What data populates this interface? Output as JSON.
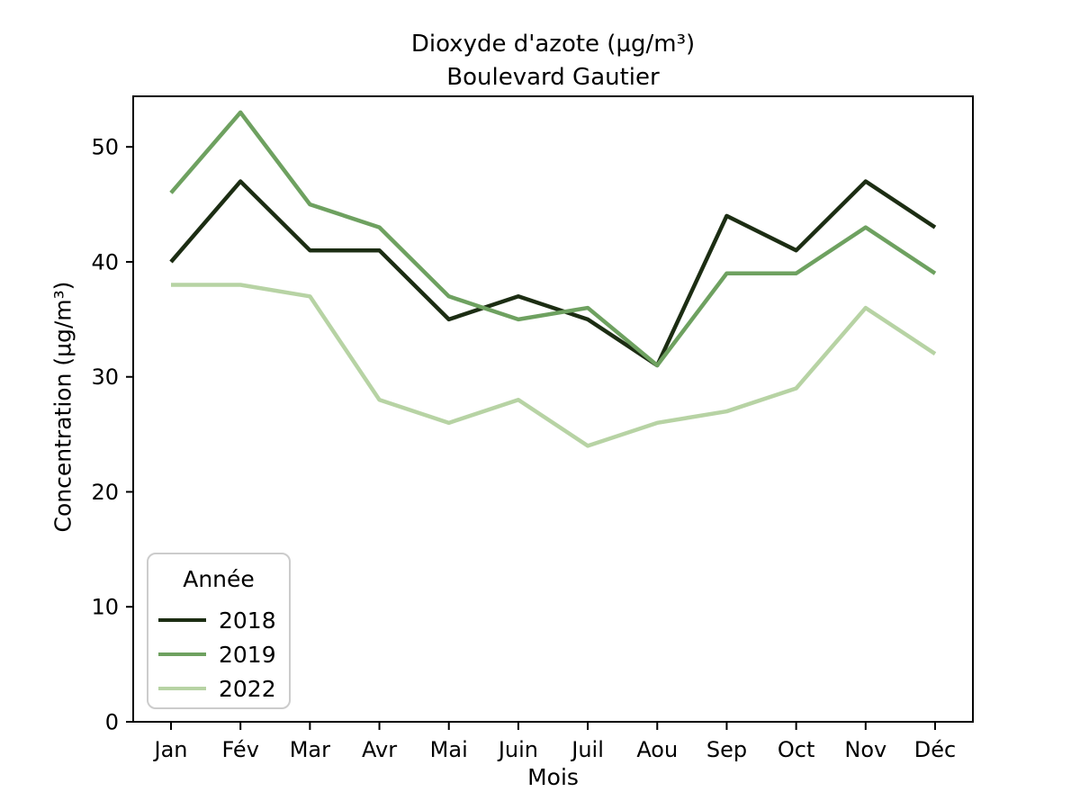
{
  "chart_data": {
    "type": "line",
    "title": "Dioxyde d'azote (µg/m³)",
    "subtitle": "Boulevard Gautier",
    "xlabel": "Mois",
    "ylabel": "Concentration (µg/m³)",
    "categories": [
      "Jan",
      "Fév",
      "Mar",
      "Avr",
      "Mai",
      "Juin",
      "Juil",
      "Aou",
      "Sep",
      "Oct",
      "Nov",
      "Déc"
    ],
    "yticks": [
      0,
      10,
      20,
      30,
      40,
      50
    ],
    "ylim": [
      0,
      54.4
    ],
    "grid": false,
    "legend": {
      "title": "Année",
      "position": "lower-left"
    },
    "series": [
      {
        "name": "2018",
        "color": "#1c2d13",
        "values": [
          40,
          47,
          41,
          41,
          35,
          37,
          35,
          31,
          44,
          41,
          47,
          43
        ]
      },
      {
        "name": "2019",
        "color": "#6ea160",
        "values": [
          46,
          53,
          45,
          43,
          37,
          35,
          36,
          31,
          39,
          39,
          43,
          39
        ]
      },
      {
        "name": "2022",
        "color": "#b7d3a4",
        "values": [
          38,
          38,
          37,
          28,
          26,
          28,
          24,
          26,
          27,
          29,
          36,
          32
        ]
      }
    ]
  }
}
